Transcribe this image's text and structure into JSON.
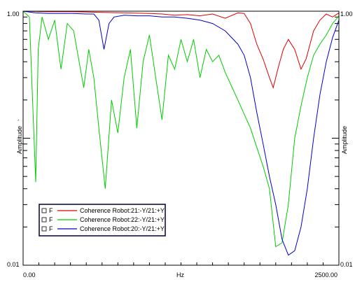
{
  "chart_data": {
    "type": "line",
    "xlabel": "Hz",
    "ylabel_left": "Amplitude",
    "ylabel_right": "Amplitude",
    "ylabel_mark": "´",
    "x_tick_labels": [
      "0.00",
      "2500.00"
    ],
    "y_tick_labels_left": [
      "1.00",
      "0.01"
    ],
    "y_tick_labels_right": [
      "1.00",
      "0.01"
    ],
    "xlim": [
      0,
      2500
    ],
    "ylim": [
      0.01,
      1.0
    ],
    "y_scale": "log",
    "grid": false,
    "legend_position": "bottom-left",
    "series": [
      {
        "name": "Coherence Robot:21:-Y/21:+Y",
        "color": "#e00000",
        "marker": "F",
        "points": [
          [
            0,
            1.0
          ],
          [
            200,
            0.99
          ],
          [
            400,
            0.99
          ],
          [
            600,
            0.98
          ],
          [
            800,
            0.97
          ],
          [
            1000,
            0.96
          ],
          [
            1100,
            0.95
          ],
          [
            1200,
            0.93
          ],
          [
            1300,
            0.94
          ],
          [
            1400,
            0.92
          ],
          [
            1500,
            0.95
          ],
          [
            1600,
            0.88
          ],
          [
            1700,
            0.97
          ],
          [
            1750,
            0.96
          ],
          [
            1800,
            0.8
          ],
          [
            1850,
            0.55
          ],
          [
            1900,
            0.42
          ],
          [
            1950,
            0.3
          ],
          [
            1980,
            0.25
          ],
          [
            2020,
            0.36
          ],
          [
            2060,
            0.5
          ],
          [
            2100,
            0.6
          ],
          [
            2150,
            0.5
          ],
          [
            2200,
            0.35
          ],
          [
            2240,
            0.42
          ],
          [
            2300,
            0.7
          ],
          [
            2350,
            0.85
          ],
          [
            2400,
            0.95
          ],
          [
            2450,
            0.9
          ],
          [
            2500,
            0.97
          ]
        ]
      },
      {
        "name": "Coherence Robot:22:-Y/21:+Y",
        "color": "#00cc00",
        "marker": "F",
        "points": [
          [
            0,
            1.0
          ],
          [
            50,
            0.9
          ],
          [
            100,
            0.045
          ],
          [
            120,
            0.5
          ],
          [
            150,
            0.9
          ],
          [
            200,
            0.6
          ],
          [
            250,
            0.85
          ],
          [
            300,
            0.35
          ],
          [
            350,
            0.8
          ],
          [
            400,
            0.7
          ],
          [
            480,
            0.25
          ],
          [
            520,
            0.5
          ],
          [
            560,
            0.3
          ],
          [
            600,
            0.12
          ],
          [
            650,
            0.04
          ],
          [
            700,
            0.2
          ],
          [
            750,
            0.11
          ],
          [
            800,
            0.3
          ],
          [
            850,
            0.5
          ],
          [
            900,
            0.12
          ],
          [
            950,
            0.4
          ],
          [
            1000,
            0.65
          ],
          [
            1050,
            0.3
          ],
          [
            1100,
            0.14
          ],
          [
            1150,
            0.45
          ],
          [
            1200,
            0.35
          ],
          [
            1250,
            0.6
          ],
          [
            1300,
            0.4
          ],
          [
            1350,
            0.6
          ],
          [
            1400,
            0.3
          ],
          [
            1450,
            0.5
          ],
          [
            1500,
            0.4
          ],
          [
            1550,
            0.45
          ],
          [
            1600,
            0.33
          ],
          [
            1700,
            0.2
          ],
          [
            1800,
            0.12
          ],
          [
            1900,
            0.06
          ],
          [
            1950,
            0.04
          ],
          [
            2000,
            0.014
          ],
          [
            2050,
            0.015
          ],
          [
            2100,
            0.03
          ],
          [
            2150,
            0.1
          ],
          [
            2200,
            0.18
          ],
          [
            2250,
            0.3
          ],
          [
            2300,
            0.45
          ],
          [
            2350,
            0.55
          ],
          [
            2400,
            0.65
          ],
          [
            2450,
            0.8
          ],
          [
            2500,
            0.92
          ]
        ]
      },
      {
        "name": "Coherence Robot:20:-Y/21:+Y",
        "color": "#0000d0",
        "marker": "F",
        "points": [
          [
            0,
            1.0
          ],
          [
            100,
            0.97
          ],
          [
            200,
            0.96
          ],
          [
            300,
            0.96
          ],
          [
            400,
            0.96
          ],
          [
            500,
            0.95
          ],
          [
            560,
            0.95
          ],
          [
            600,
            0.85
          ],
          [
            640,
            0.5
          ],
          [
            680,
            0.8
          ],
          [
            720,
            0.9
          ],
          [
            800,
            0.93
          ],
          [
            900,
            0.92
          ],
          [
            1000,
            0.92
          ],
          [
            1100,
            0.9
          ],
          [
            1200,
            0.9
          ],
          [
            1300,
            0.88
          ],
          [
            1400,
            0.85
          ],
          [
            1500,
            0.8
          ],
          [
            1600,
            0.7
          ],
          [
            1700,
            0.55
          ],
          [
            1750,
            0.45
          ],
          [
            1800,
            0.3
          ],
          [
            1850,
            0.16
          ],
          [
            1900,
            0.09
          ],
          [
            1950,
            0.05
          ],
          [
            2000,
            0.03
          ],
          [
            2050,
            0.016
          ],
          [
            2100,
            0.012
          ],
          [
            2150,
            0.013
          ],
          [
            2200,
            0.02
          ],
          [
            2250,
            0.04
          ],
          [
            2300,
            0.1
          ],
          [
            2350,
            0.22
          ],
          [
            2400,
            0.4
          ],
          [
            2450,
            0.62
          ],
          [
            2500,
            0.85
          ]
        ]
      }
    ]
  }
}
